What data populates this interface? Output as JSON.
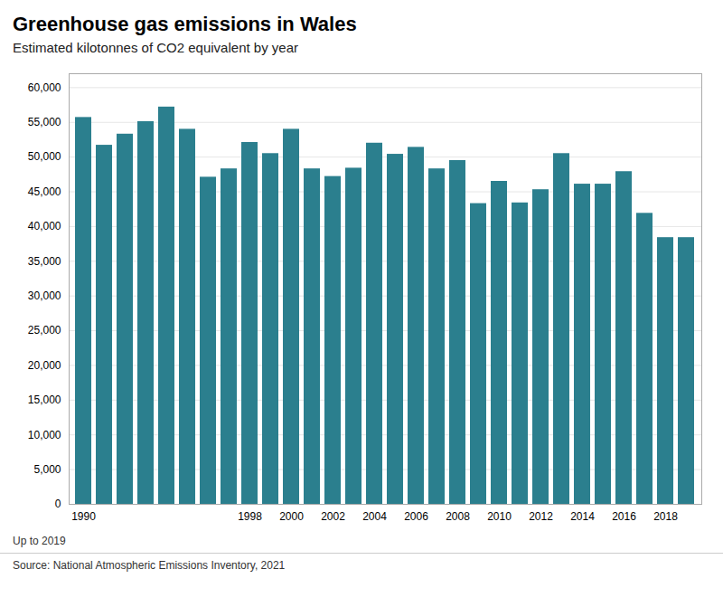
{
  "chart_data": {
    "type": "bar",
    "title": "Greenhouse gas emissions in Wales",
    "subtitle": "Estimated kilotonnes of CO2 equivalent by year",
    "note": "Up to 2019",
    "source": "Source: National Atmospheric Emissions Inventory, 2021",
    "categories": [
      "1990",
      null,
      null,
      null,
      null,
      null,
      null,
      null,
      "1998",
      null,
      "2000",
      null,
      "2002",
      null,
      "2004",
      null,
      "2006",
      null,
      "2008",
      null,
      "2010",
      null,
      "2012",
      null,
      "2014",
      null,
      "2016",
      null,
      "2018",
      null
    ],
    "values": [
      55700,
      51700,
      53300,
      55100,
      57200,
      54000,
      47100,
      48300,
      52100,
      50500,
      54000,
      48300,
      47200,
      48400,
      52000,
      50400,
      51400,
      48300,
      49500,
      43300,
      46500,
      43400,
      45300,
      50500,
      46100,
      46100,
      47900,
      41900,
      38400,
      38400
    ],
    "color": "#2b7f8e",
    "ylim": [
      0,
      62000
    ],
    "yticks": [
      0,
      {
        "value": 5000,
        "label": "5,000"
      },
      {
        "value": 10000,
        "label": "10,000"
      },
      {
        "value": 15000,
        "label": "15,000"
      },
      {
        "value": 20000,
        "label": "20,000"
      },
      {
        "value": 25000,
        "label": "25,000"
      },
      {
        "value": 30000,
        "label": "30,000"
      },
      {
        "value": 35000,
        "label": "35,000"
      },
      {
        "value": 40000,
        "label": "40,000"
      },
      {
        "value": 45000,
        "label": "45,000"
      },
      {
        "value": 50000,
        "label": "50,000"
      },
      {
        "value": 55000,
        "label": "55,000"
      },
      {
        "value": 60000,
        "label": "60,000"
      }
    ],
    "grid": true
  }
}
